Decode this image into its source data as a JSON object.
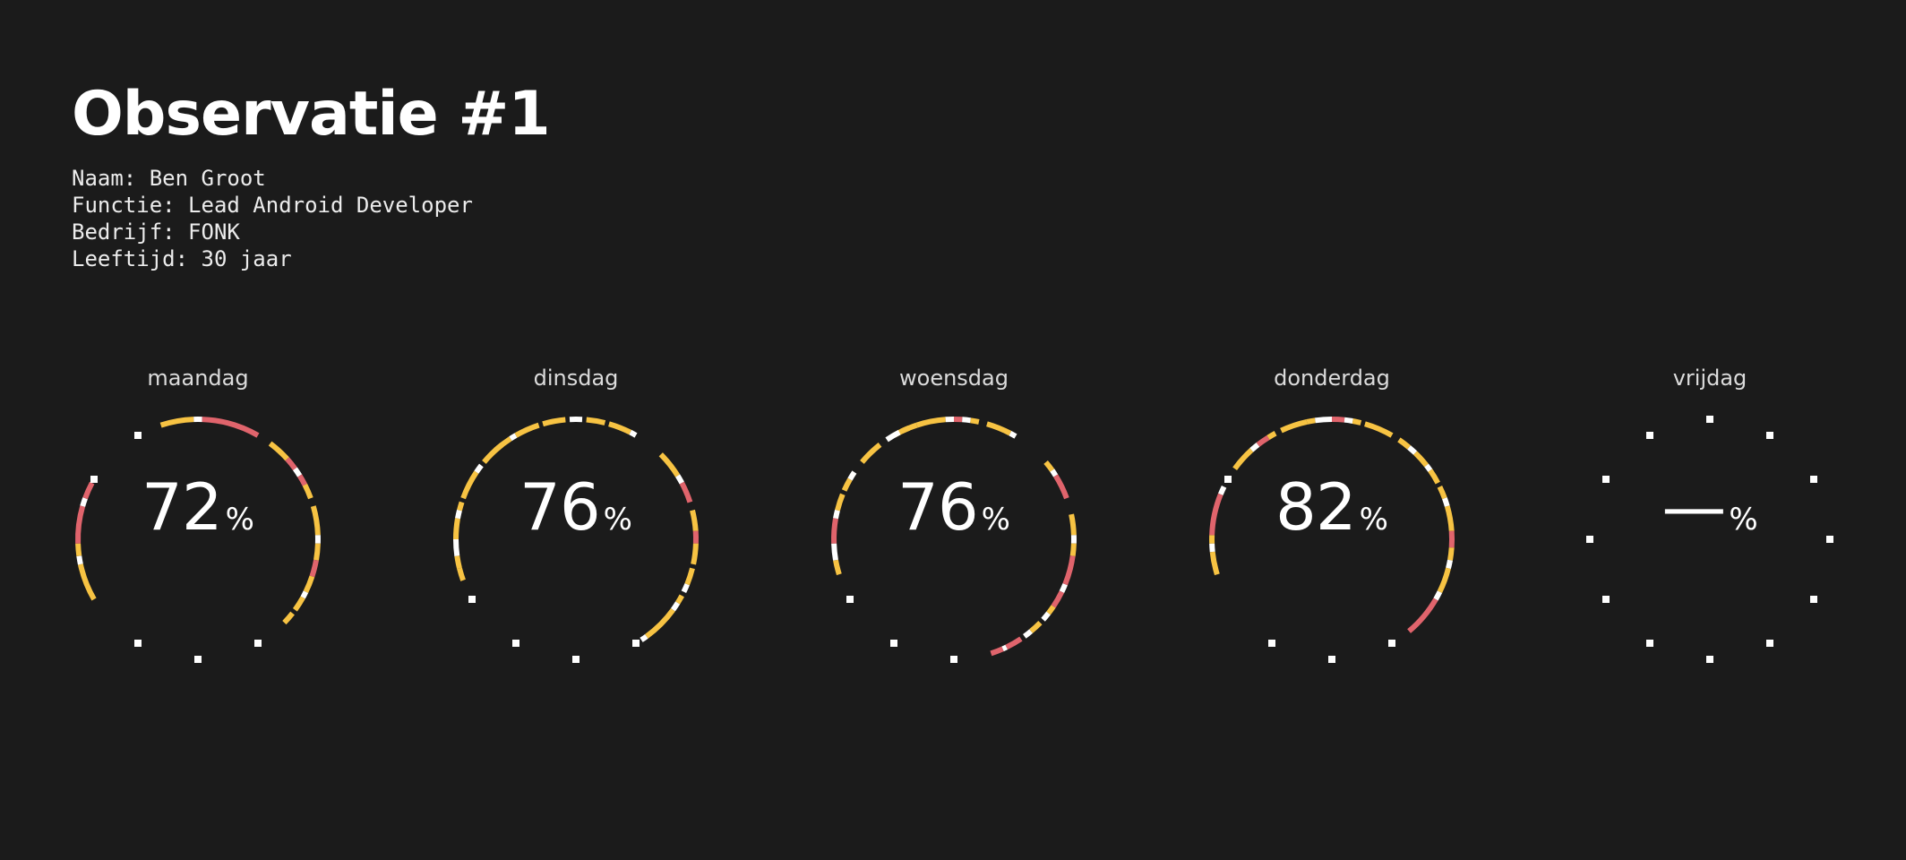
{
  "title": "Observatie #1",
  "meta": {
    "naam": "Naam: Ben Groot",
    "functie": "Functie: Lead Android Developer",
    "bedrijf": "Bedrijf: FONK",
    "leeftijd": "Leeftijd: 30 jaar"
  },
  "colors": {
    "background": "#1b1b1b",
    "yellow": "#f7c343",
    "red": "#e0646c",
    "white": "#ffffff"
  },
  "days": [
    {
      "label": "maandag",
      "score": "72",
      "unit": "%"
    },
    {
      "label": "dinsdag",
      "score": "76",
      "unit": "%"
    },
    {
      "label": "woensdag",
      "score": "76",
      "unit": "%"
    },
    {
      "label": "donderdag",
      "score": "82",
      "unit": "%"
    },
    {
      "label": "vrijdag",
      "score": "—",
      "unit": "%"
    }
  ]
}
